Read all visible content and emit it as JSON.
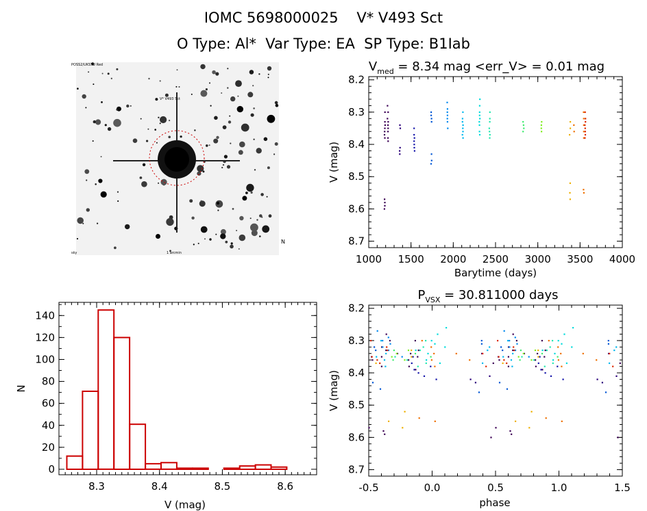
{
  "header": {
    "line1": "IOMC 5698000025    V* V493 Sct",
    "line2": "O Type: Al*  Var Type: EA  SP Type: B1Iab"
  },
  "colors": {
    "hist": "#cc0000",
    "image_circle": "#cc0000",
    "palette": [
      "#3b0054",
      "#2a007a",
      "#1515aa",
      "#0055d4",
      "#0088ee",
      "#00b8ee",
      "#00dcdc",
      "#22e8b0",
      "#40ec70",
      "#80ee20",
      "#c8e000",
      "#eeb000",
      "#ee7000",
      "#dd2800"
    ]
  },
  "image_panel": {
    "labels": {
      "top_left": "POSS2/UKSTU Red",
      "top_marker": "V* V493 Sct",
      "bottom_left": "sky",
      "bottom_center": "1 arcmin",
      "bottom_right": "N"
    }
  },
  "chart_data": [
    {
      "id": "lightcurve",
      "type": "scatter",
      "title": "V_med = 8.34 mag  <err_V> = 0.01 mag",
      "title_parts": {
        "prefix": "V",
        "sub": "med",
        "rest": " = 8.34 mag  <err_V> = 0.01 mag"
      },
      "xlabel": "Barytime (days)",
      "ylabel": "V (mag)",
      "xlim": [
        1000,
        4000
      ],
      "ylim": [
        8.72,
        8.19
      ],
      "xticks": [
        1000,
        1500,
        2000,
        2500,
        3000,
        3500,
        4000
      ],
      "yticks": [
        8.2,
        8.3,
        8.4,
        8.5,
        8.6,
        8.7
      ],
      "groups": [
        {
          "t": 1190,
          "ci": 0,
          "mags": [
            8.57,
            8.58,
            8.59,
            8.6,
            8.33,
            8.34,
            8.35,
            8.36,
            8.37,
            8.3,
            8.38
          ]
        },
        {
          "t": 1225,
          "ci": 0,
          "mags": [
            8.28,
            8.3,
            8.32,
            8.33,
            8.34,
            8.35,
            8.36,
            8.38,
            8.39
          ]
        },
        {
          "t": 1370,
          "ci": 1,
          "mags": [
            8.34,
            8.35,
            8.41,
            8.42,
            8.43
          ]
        },
        {
          "t": 1540,
          "ci": 2,
          "mags": [
            8.35,
            8.37,
            8.38,
            8.39,
            8.4,
            8.41,
            8.42
          ]
        },
        {
          "t": 1740,
          "ci": 3,
          "mags": [
            8.3,
            8.31,
            8.32,
            8.33,
            8.43,
            8.45,
            8.46
          ]
        },
        {
          "t": 1930,
          "ci": 4,
          "mags": [
            8.27,
            8.29,
            8.3,
            8.31,
            8.32,
            8.33,
            8.35
          ]
        },
        {
          "t": 2110,
          "ci": 5,
          "mags": [
            8.3,
            8.32,
            8.33,
            8.34,
            8.35,
            8.36,
            8.37,
            8.38
          ]
        },
        {
          "t": 2310,
          "ci": 6,
          "mags": [
            8.26,
            8.28,
            8.3,
            8.31,
            8.32,
            8.33,
            8.34,
            8.36,
            8.37
          ]
        },
        {
          "t": 2430,
          "ci": 7,
          "mags": [
            8.3,
            8.32,
            8.33,
            8.35,
            8.36,
            8.37,
            8.38
          ]
        },
        {
          "t": 2830,
          "ci": 8,
          "mags": [
            8.33,
            8.34,
            8.35,
            8.36
          ]
        },
        {
          "t": 3040,
          "ci": 9,
          "mags": [
            8.33,
            8.34,
            8.35,
            8.36
          ]
        },
        {
          "t": 3380,
          "ci": 11,
          "mags": [
            8.33,
            8.35,
            8.37,
            8.52,
            8.55,
            8.57
          ]
        },
        {
          "t": 3430,
          "ci": 12,
          "mags": [
            8.34,
            8.36
          ]
        },
        {
          "t": 3545,
          "ci": 12,
          "mags": [
            8.3,
            8.32,
            8.34,
            8.36,
            8.38,
            8.54,
            8.55
          ]
        },
        {
          "t": 3560,
          "ci": 13,
          "mags": [
            8.3,
            8.32,
            8.33,
            8.34,
            8.35,
            8.36,
            8.37,
            8.38
          ]
        }
      ]
    },
    {
      "id": "histogram",
      "type": "bar",
      "xlabel": "V (mag)",
      "ylabel": "N",
      "xlim": [
        8.24,
        8.65
      ],
      "ylim": [
        -5,
        152
      ],
      "xticks": [
        8.3,
        8.4,
        8.5,
        8.6
      ],
      "yticks": [
        0,
        20,
        40,
        60,
        80,
        100,
        120,
        140
      ],
      "bin_width": 0.025,
      "bins": [
        {
          "x": 8.265,
          "count": 12
        },
        {
          "x": 8.29,
          "count": 71
        },
        {
          "x": 8.315,
          "count": 145
        },
        {
          "x": 8.34,
          "count": 120
        },
        {
          "x": 8.365,
          "count": 41
        },
        {
          "x": 8.39,
          "count": 5
        },
        {
          "x": 8.415,
          "count": 6
        },
        {
          "x": 8.44,
          "count": 1
        },
        {
          "x": 8.465,
          "count": 1
        },
        {
          "x": 8.49,
          "count": 0
        },
        {
          "x": 8.515,
          "count": 1
        },
        {
          "x": 8.54,
          "count": 3
        },
        {
          "x": 8.565,
          "count": 4
        },
        {
          "x": 8.59,
          "count": 2
        }
      ]
    },
    {
      "id": "phased",
      "type": "scatter",
      "title": "P_VSX = 30.811000 days",
      "title_parts": {
        "prefix": "P",
        "sub": "VSX",
        "rest": " = 30.811000 days"
      },
      "xlabel": "phase",
      "ylabel": "V (mag)",
      "xlim": [
        -0.5,
        1.5
      ],
      "ylim": [
        8.72,
        8.19
      ],
      "xticks": [
        -0.5,
        0.0,
        0.5,
        1.0,
        1.5
      ],
      "yticks": [
        8.2,
        8.3,
        8.4,
        8.5,
        8.6,
        8.7
      ],
      "period": 30.811
    }
  ]
}
